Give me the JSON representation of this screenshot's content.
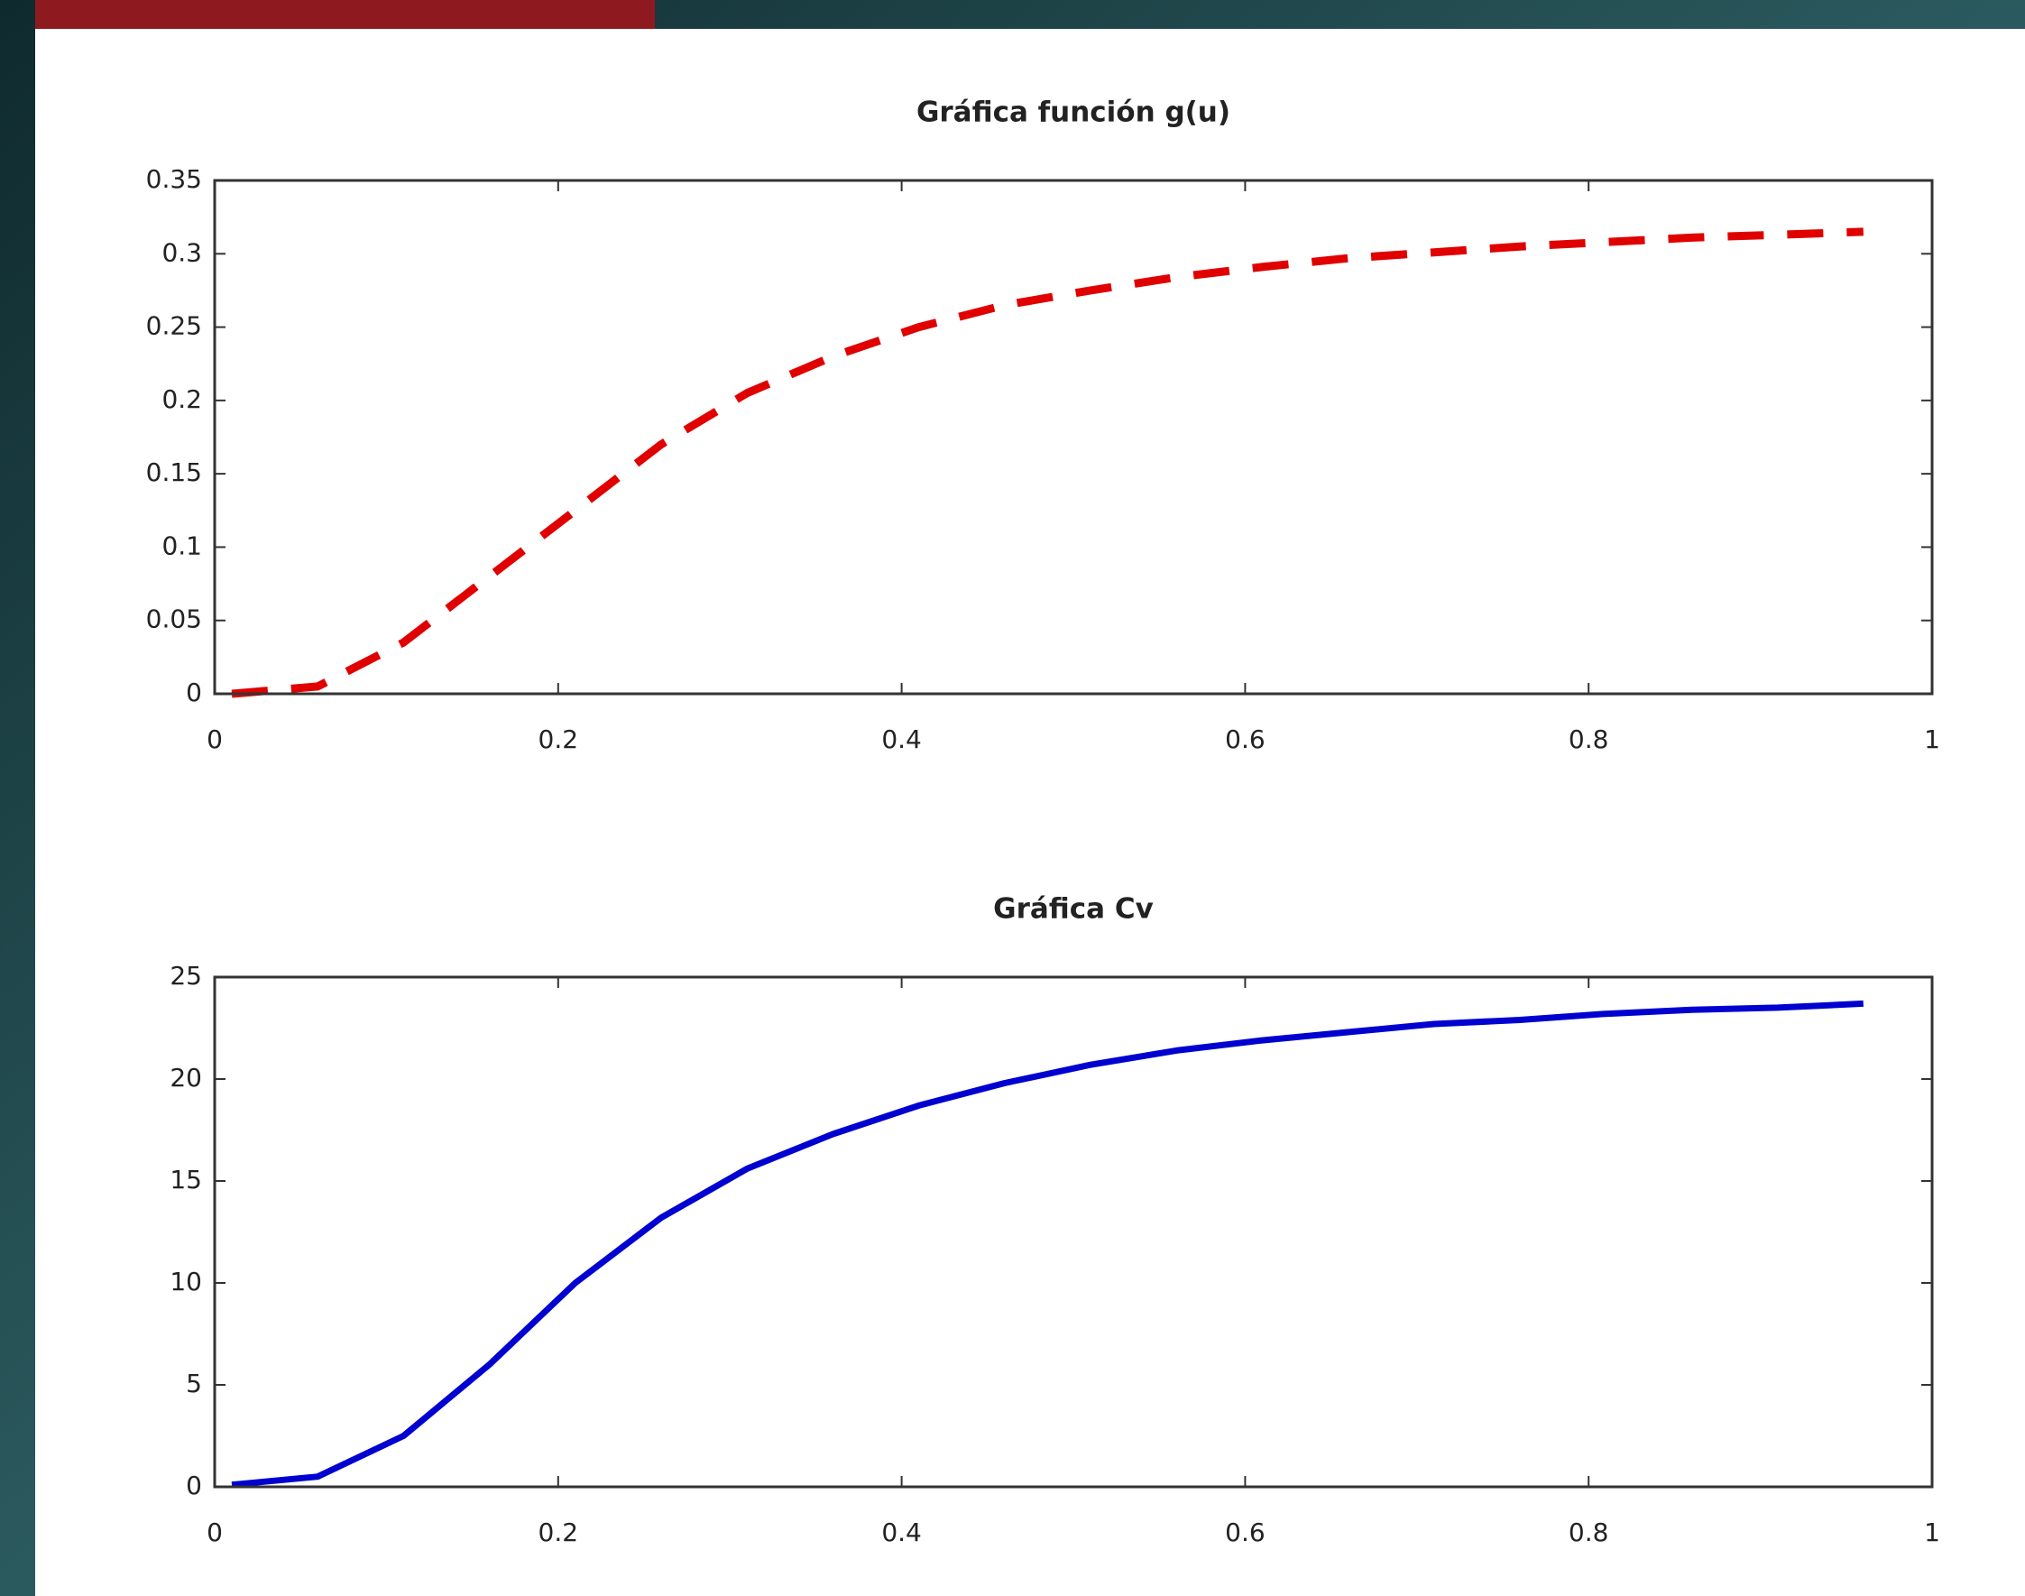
{
  "chart_data": [
    {
      "type": "line",
      "title": "Gráfica función g(u)",
      "x": [
        0.01,
        0.06,
        0.11,
        0.16,
        0.21,
        0.26,
        0.31,
        0.36,
        0.41,
        0.46,
        0.51,
        0.56,
        0.61,
        0.66,
        0.71,
        0.76,
        0.81,
        0.86,
        0.91,
        0.96
      ],
      "values": [
        0.0,
        0.005,
        0.035,
        0.08,
        0.125,
        0.17,
        0.205,
        0.23,
        0.25,
        0.265,
        0.275,
        0.284,
        0.291,
        0.297,
        0.301,
        0.305,
        0.308,
        0.311,
        0.313,
        0.315
      ],
      "color": "#e00000",
      "dashed": true,
      "xlim": [
        0,
        1
      ],
      "xticks": [
        0,
        0.2,
        0.4,
        0.6,
        0.8,
        1
      ],
      "ylim": [
        0,
        0.35
      ],
      "yticks": [
        0,
        0.05,
        0.1,
        0.15,
        0.2,
        0.25,
        0.3,
        0.35
      ]
    },
    {
      "type": "line",
      "title": "Gráfica Cv",
      "x": [
        0.01,
        0.06,
        0.11,
        0.16,
        0.21,
        0.26,
        0.31,
        0.36,
        0.41,
        0.46,
        0.51,
        0.56,
        0.61,
        0.66,
        0.71,
        0.76,
        0.81,
        0.86,
        0.91,
        0.96
      ],
      "values": [
        0.1,
        0.5,
        2.5,
        6,
        10,
        13.2,
        15.6,
        17.3,
        18.7,
        19.8,
        20.7,
        21.4,
        21.9,
        22.3,
        22.7,
        22.9,
        23.2,
        23.4,
        23.5,
        23.7
      ],
      "color": "#0000d0",
      "dashed": false,
      "xlim": [
        0,
        1
      ],
      "xticks": [
        0,
        0.2,
        0.4,
        0.6,
        0.8,
        1
      ],
      "ylim": [
        0,
        25
      ],
      "yticks": [
        0,
        5,
        10,
        15,
        20,
        25
      ]
    }
  ]
}
